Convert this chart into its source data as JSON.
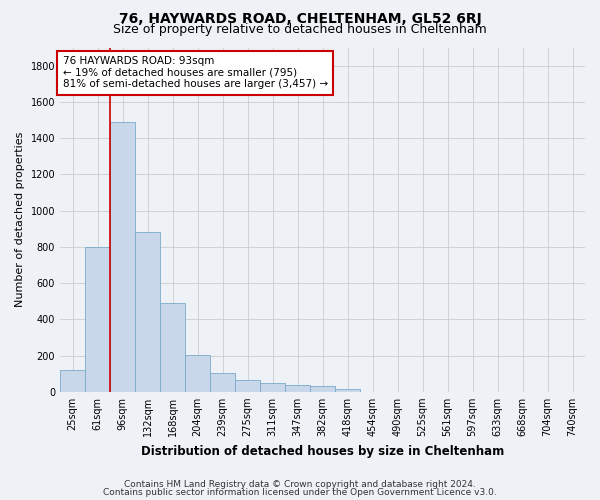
{
  "title1": "76, HAYWARDS ROAD, CHELTENHAM, GL52 6RJ",
  "title2": "Size of property relative to detached houses in Cheltenham",
  "xlabel": "Distribution of detached houses by size in Cheltenham",
  "ylabel": "Number of detached properties",
  "footer1": "Contains HM Land Registry data © Crown copyright and database right 2024.",
  "footer2": "Contains public sector information licensed under the Open Government Licence v3.0.",
  "bar_labels": [
    "25sqm",
    "61sqm",
    "96sqm",
    "132sqm",
    "168sqm",
    "204sqm",
    "239sqm",
    "275sqm",
    "311sqm",
    "347sqm",
    "382sqm",
    "418sqm",
    "454sqm",
    "490sqm",
    "525sqm",
    "561sqm",
    "597sqm",
    "633sqm",
    "668sqm",
    "704sqm",
    "740sqm"
  ],
  "bar_values": [
    120,
    800,
    1490,
    880,
    490,
    205,
    105,
    65,
    50,
    40,
    30,
    15,
    0,
    0,
    0,
    0,
    0,
    0,
    0,
    0,
    0
  ],
  "bar_color": "#c8d8ea",
  "bar_edgecolor": "#7aaac8",
  "red_line_index": 2,
  "annotation_line1": "76 HAYWARDS ROAD: 93sqm",
  "annotation_line2": "← 19% of detached houses are smaller (795)",
  "annotation_line3": "81% of semi-detached houses are larger (3,457) →",
  "annotation_box_facecolor": "#ffffff",
  "annotation_box_edgecolor": "#cc0000",
  "ylim": [
    0,
    1900
  ],
  "yticks": [
    0,
    200,
    400,
    600,
    800,
    1000,
    1200,
    1400,
    1600,
    1800
  ],
  "grid_color": "#cccccc",
  "background_color": "#eef2f7",
  "title1_fontsize": 10,
  "title2_fontsize": 9,
  "xlabel_fontsize": 8.5,
  "ylabel_fontsize": 8,
  "tick_fontsize": 7,
  "annotation_fontsize": 7.5,
  "footer_fontsize": 6.5
}
